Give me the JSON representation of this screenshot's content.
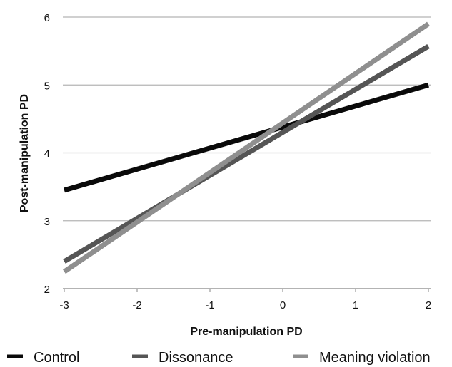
{
  "chart_data": {
    "type": "line",
    "xlabel": "Pre-manipulation PD",
    "ylabel": "Post-manipulation PD",
    "x": [
      -3,
      2
    ],
    "xlim": [
      -3,
      2
    ],
    "ylim": [
      2,
      6
    ],
    "xticks": [
      "-3",
      "-2",
      "-1",
      "0",
      "1",
      "2"
    ],
    "yticks": [
      "2",
      "3",
      "4",
      "5",
      "6"
    ],
    "grid": "horizontal",
    "legend_position": "bottom",
    "series": [
      {
        "name": "Control",
        "values": [
          3.45,
          5.0
        ],
        "color": "#0a0a0a"
      },
      {
        "name": "Dissonance",
        "values": [
          2.4,
          5.57
        ],
        "color": "#555555"
      },
      {
        "name": "Meaning violation",
        "values": [
          2.25,
          5.9
        ],
        "color": "#8f8f8f"
      }
    ]
  }
}
